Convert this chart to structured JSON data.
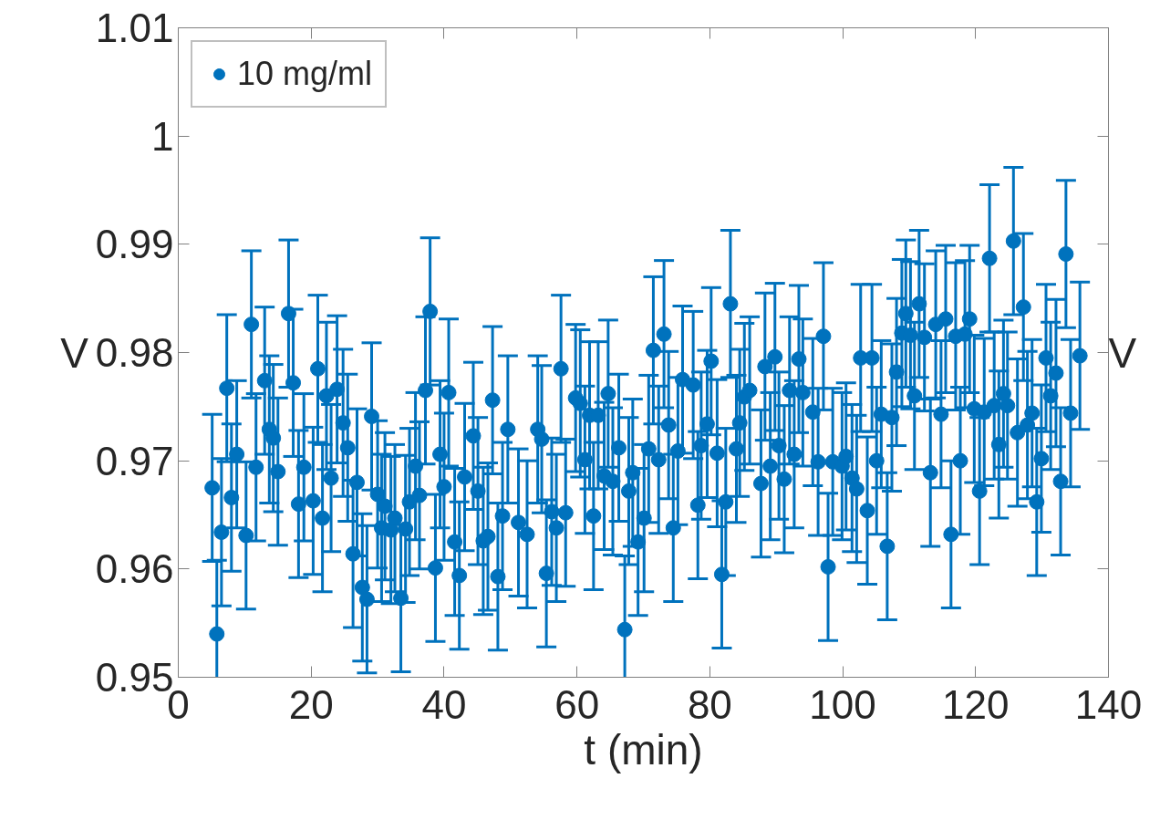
{
  "chart_data": {
    "type": "scatter",
    "xlabel": "t (min)",
    "ylabel": "V",
    "y2label": "V",
    "xlim": [
      0,
      140
    ],
    "xticks": [
      0,
      20,
      40,
      60,
      80,
      100,
      120,
      140
    ],
    "ylim": [
      0.95,
      1.01
    ],
    "yticks": [
      0.95,
      0.96,
      0.97,
      0.98,
      0.99,
      1,
      1.01
    ],
    "grid": false,
    "legend": "top left",
    "marker": "circle",
    "series": [
      {
        "name": "10 mg/ml",
        "color": "#0072bd",
        "x": [
          5.1,
          5.8,
          6.5,
          7.3,
          8.0,
          8.8,
          10.2,
          11.0,
          11.7,
          13.0,
          13.7,
          14.3,
          15.0,
          16.6,
          17.3,
          18.1,
          18.9,
          20.3,
          21.0,
          21.7,
          22.3,
          23.0,
          23.9,
          24.8,
          25.5,
          26.3,
          26.9,
          27.7,
          28.4,
          29.1,
          30.0,
          30.6,
          31.1,
          32.0,
          32.6,
          33.5,
          34.2,
          34.8,
          35.7,
          36.3,
          37.2,
          37.9,
          38.7,
          39.4,
          40.0,
          40.7,
          41.6,
          42.3,
          43.1,
          44.4,
          45.1,
          45.9,
          46.6,
          47.3,
          48.1,
          48.8,
          49.6,
          51.2,
          52.5,
          54.1,
          54.7,
          55.4,
          56.2,
          56.9,
          57.6,
          58.3,
          59.8,
          60.5,
          61.2,
          61.9,
          62.5,
          63.2,
          64.1,
          64.7,
          65.4,
          66.3,
          67.2,
          67.8,
          68.4,
          69.2,
          70.1,
          70.8,
          71.5,
          72.3,
          73.1,
          73.8,
          74.5,
          75.2,
          75.9,
          77.5,
          78.2,
          78.7,
          79.6,
          80.2,
          81.1,
          81.8,
          82.4,
          83.1,
          84.0,
          84.5,
          85.2,
          86.0,
          87.7,
          88.3,
          89.1,
          89.8,
          90.4,
          91.2,
          92.0,
          92.7,
          93.4,
          94.0,
          95.5,
          96.3,
          97.1,
          97.8,
          98.5,
          99.9,
          100.5,
          101.4,
          102.1,
          102.7,
          103.7,
          104.4,
          105.1,
          105.8,
          106.7,
          107.4,
          108.1,
          108.9,
          109.5,
          110.2,
          110.8,
          111.5,
          112.3,
          113.2,
          114.0,
          114.8,
          115.5,
          116.3,
          117.0,
          117.7,
          118.4,
          119.1,
          119.8,
          120.6,
          121.3,
          122.1,
          122.8,
          123.5,
          124.2,
          124.8,
          125.7,
          126.3,
          127.2,
          127.8,
          128.5,
          129.2,
          129.9,
          130.6,
          131.3,
          132.1,
          132.8,
          133.6,
          134.3,
          135.7
        ],
        "values": [
          0.9675,
          0.954,
          0.9634,
          0.9767,
          0.9666,
          0.9706,
          0.9631,
          0.9826,
          0.9694,
          0.9774,
          0.9729,
          0.9721,
          0.969,
          0.9836,
          0.9772,
          0.966,
          0.9694,
          0.9663,
          0.9785,
          0.9647,
          0.976,
          0.9684,
          0.9766,
          0.9735,
          0.9712,
          0.9614,
          0.968,
          0.9583,
          0.9572,
          0.9741,
          0.9669,
          0.9638,
          0.9658,
          0.9636,
          0.9647,
          0.9573,
          0.9637,
          0.9662,
          0.9695,
          0.9668,
          0.9765,
          0.9838,
          0.9601,
          0.9706,
          0.9676,
          0.9763,
          0.9625,
          0.9594,
          0.9685,
          0.9723,
          0.9672,
          0.9626,
          0.963,
          0.9756,
          0.9593,
          0.9649,
          0.9729,
          0.9643,
          0.9632,
          0.9729,
          0.972,
          0.9596,
          0.9653,
          0.9638,
          0.9785,
          0.9652,
          0.9758,
          0.9753,
          0.9701,
          0.9742,
          0.9649,
          0.9742,
          0.9686,
          0.9762,
          0.9681,
          0.9712,
          0.9544,
          0.9672,
          0.9689,
          0.9625,
          0.9647,
          0.9711,
          0.9802,
          0.9701,
          0.9817,
          0.9733,
          0.9638,
          0.9709,
          0.9775,
          0.977,
          0.9659,
          0.9714,
          0.9734,
          0.9792,
          0.9707,
          0.9595,
          0.9662,
          0.9845,
          0.9711,
          0.9735,
          0.9759,
          0.9765,
          0.9679,
          0.9787,
          0.9695,
          0.9796,
          0.9714,
          0.9683,
          0.9765,
          0.9706,
          0.9794,
          0.9763,
          0.9745,
          0.9699,
          0.9815,
          0.9602,
          0.9699,
          0.9695,
          0.9704,
          0.9684,
          0.9674,
          0.9795,
          0.9654,
          0.9795,
          0.97,
          0.9743,
          0.9621,
          0.974,
          0.9782,
          0.9818,
          0.9836,
          0.9816,
          0.976,
          0.9845,
          0.9814,
          0.9689,
          0.9826,
          0.9743,
          0.9831,
          0.9632,
          0.9815,
          0.97,
          0.9817,
          0.9831,
          0.9748,
          0.9672,
          0.9745,
          0.9887,
          0.9751,
          0.9715,
          0.9762,
          0.9751,
          0.9903,
          0.9726,
          0.9842,
          0.9733,
          0.9744,
          0.9662,
          0.9702,
          0.9795,
          0.976,
          0.9781,
          0.9681,
          0.9891,
          0.9744,
          0.9797
        ],
        "errors": [
          0.0068,
          0.0068,
          0.0068,
          0.0068,
          0.0068,
          0.0068,
          0.0068,
          0.0068,
          0.0068,
          0.0068,
          0.0068,
          0.0068,
          0.0068,
          0.0068,
          0.0068,
          0.0068,
          0.0068,
          0.0068,
          0.0068,
          0.0068,
          0.0068,
          0.0068,
          0.0068,
          0.0068,
          0.0068,
          0.0068,
          0.0068,
          0.0068,
          0.0068,
          0.0068,
          0.0068,
          0.0068,
          0.0068,
          0.0068,
          0.0068,
          0.0068,
          0.0068,
          0.0068,
          0.0068,
          0.0068,
          0.0068,
          0.0068,
          0.0068,
          0.0068,
          0.0068,
          0.0068,
          0.0068,
          0.0068,
          0.0068,
          0.0068,
          0.0068,
          0.0068,
          0.0068,
          0.0068,
          0.0068,
          0.0068,
          0.0068,
          0.0068,
          0.0068,
          0.0068,
          0.0068,
          0.0068,
          0.0068,
          0.0068,
          0.0068,
          0.0068,
          0.0068,
          0.0068,
          0.0068,
          0.0068,
          0.0068,
          0.0068,
          0.0068,
          0.0068,
          0.0068,
          0.0068,
          0.0068,
          0.0068,
          0.0068,
          0.0068,
          0.0068,
          0.0068,
          0.0068,
          0.0068,
          0.0068,
          0.0068,
          0.0068,
          0.0068,
          0.0068,
          0.0068,
          0.0068,
          0.0068,
          0.0068,
          0.0068,
          0.0068,
          0.0068,
          0.0068,
          0.0068,
          0.0068,
          0.0068,
          0.0068,
          0.0068,
          0.0068,
          0.0068,
          0.0068,
          0.0068,
          0.0068,
          0.0068,
          0.0068,
          0.0068,
          0.0068,
          0.0068,
          0.0068,
          0.0068,
          0.0068,
          0.0068,
          0.0068,
          0.0068,
          0.0068,
          0.0068,
          0.0068,
          0.0068,
          0.0068,
          0.0068,
          0.0068,
          0.0068,
          0.0068,
          0.0068,
          0.0068,
          0.0068,
          0.0068,
          0.0068,
          0.0068,
          0.0068,
          0.0068,
          0.0068,
          0.0068,
          0.0068,
          0.0068,
          0.0068,
          0.0068,
          0.0068,
          0.0068,
          0.0068,
          0.0068,
          0.0068,
          0.0068,
          0.0068,
          0.0068,
          0.0068,
          0.0068,
          0.0068,
          0.0068,
          0.0068,
          0.0068,
          0.0068,
          0.0068,
          0.0068,
          0.0068,
          0.0068,
          0.0068,
          0.0068,
          0.0068,
          0.0068,
          0.0068,
          0.0068
        ]
      }
    ]
  }
}
